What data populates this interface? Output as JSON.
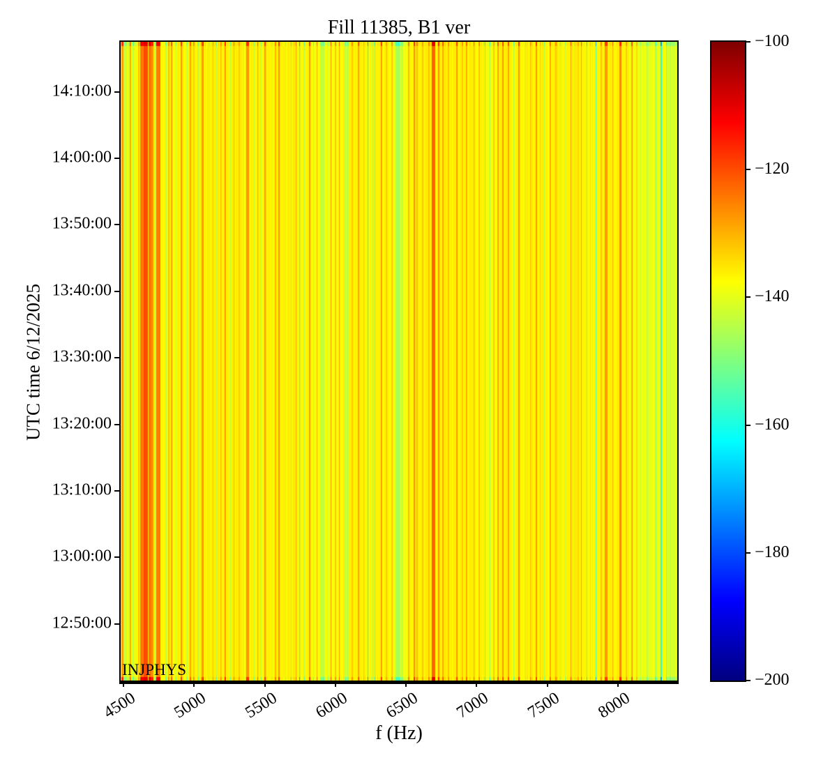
{
  "title": "Fill 11385, B1 ver",
  "xlabel": "f (Hz)",
  "ylabel": "UTC time 6/12/2025",
  "annotation": "INJPHYS",
  "colorbar": {
    "cmap": "jet",
    "vmin": -200,
    "vmax": -100,
    "tick_values": [
      -100,
      -120,
      -140,
      -160,
      -180,
      -200
    ],
    "tick_labels": [
      "−100",
      "−120",
      "−140",
      "−160",
      "−180",
      "−200"
    ]
  },
  "chart_data": {
    "type": "heatmap",
    "title": "Fill 11385, B1 ver",
    "xlabel": "f (Hz)",
    "ylabel": "UTC time 6/12/2025",
    "x_ticks": [
      4500,
      5000,
      5500,
      6000,
      6500,
      7000,
      7500,
      8000
    ],
    "y_ticks": [
      "14:10:00",
      "14:00:00",
      "13:50:00",
      "13:40:00",
      "13:30:00",
      "13:20:00",
      "13:10:00",
      "13:00:00",
      "12:50:00"
    ],
    "x_range_hz": [
      4480,
      8420
    ],
    "y_range_utc": [
      "12:41:30",
      "14:17:30"
    ],
    "value_range_db": [
      -200,
      -100
    ],
    "base_db": -136.5,
    "noise_db": 1.3,
    "edge_contrast": 2.1,
    "stripes": [
      [
        4560,
        160,
        -138.5
      ],
      [
        5950,
        200,
        -138
      ],
      [
        6460,
        120,
        -139
      ],
      [
        7100,
        100,
        -138
      ],
      [
        8200,
        250,
        -139
      ],
      [
        8380,
        80,
        -141
      ],
      [
        4490,
        15,
        -128
      ],
      [
        4515,
        20,
        -143
      ],
      [
        4535,
        15,
        -141
      ],
      [
        4548,
        8,
        -130
      ],
      [
        4570,
        10,
        -144
      ],
      [
        4610,
        10,
        -131
      ],
      [
        4632,
        28,
        -125
      ],
      [
        4660,
        30,
        -120
      ],
      [
        4688,
        22,
        -123
      ],
      [
        4706,
        14,
        -127
      ],
      [
        4727,
        8,
        -143
      ],
      [
        4748,
        28,
        -124
      ],
      [
        4800,
        8,
        -144
      ],
      [
        4822,
        10,
        -131
      ],
      [
        4840,
        12,
        -128
      ],
      [
        4870,
        6,
        -142
      ],
      [
        4910,
        10,
        -128
      ],
      [
        4948,
        8,
        -143
      ],
      [
        4973,
        8,
        -129
      ],
      [
        5000,
        10,
        -132
      ],
      [
        5032,
        8,
        -144
      ],
      [
        5062,
        14,
        -127
      ],
      [
        5106,
        7,
        -143
      ],
      [
        5135,
        7,
        -130
      ],
      [
        5160,
        7,
        -144
      ],
      [
        5190,
        8,
        -132
      ],
      [
        5219,
        9,
        -128
      ],
      [
        5254,
        8,
        -143
      ],
      [
        5283,
        8,
        -129
      ],
      [
        5320,
        8,
        -132
      ],
      [
        5352,
        8,
        -144
      ],
      [
        5378,
        18,
        -127
      ],
      [
        5426,
        8,
        -143
      ],
      [
        5451,
        8,
        -129
      ],
      [
        5475,
        8,
        -144
      ],
      [
        5500,
        10,
        -128
      ],
      [
        5549,
        7,
        -143
      ],
      [
        5575,
        8,
        -131
      ],
      [
        5599,
        10,
        -127
      ],
      [
        5648,
        6,
        -142
      ],
      [
        5687,
        8,
        -145
      ],
      [
        5722,
        8,
        -128
      ],
      [
        5746,
        8,
        -157
      ],
      [
        5781,
        8,
        -146
      ],
      [
        5820,
        9,
        -128
      ],
      [
        5845,
        7,
        -144
      ],
      [
        5869,
        6,
        -129
      ],
      [
        5905,
        30,
        -144
      ],
      [
        5945,
        10,
        -141
      ],
      [
        5968,
        8,
        -128
      ],
      [
        6000,
        8,
        -133
      ],
      [
        6027,
        8,
        -129
      ],
      [
        6070,
        15,
        -144
      ],
      [
        6090,
        12,
        -146
      ],
      [
        6120,
        10,
        -133
      ],
      [
        6165,
        9,
        -128
      ],
      [
        6200,
        8,
        -132
      ],
      [
        6230,
        9,
        -163
      ],
      [
        6258,
        10,
        -141
      ],
      [
        6278,
        10,
        -145
      ],
      [
        6327,
        9,
        -128
      ],
      [
        6360,
        10,
        -133
      ],
      [
        6400,
        12,
        -132
      ],
      [
        6440,
        25,
        -146
      ],
      [
        6470,
        20,
        -143
      ],
      [
        6520,
        10,
        -131
      ],
      [
        6560,
        12,
        -128
      ],
      [
        6580,
        10,
        -130
      ],
      [
        6620,
        10,
        -132
      ],
      [
        6660,
        10,
        -131
      ],
      [
        6695,
        26,
        -122
      ],
      [
        6730,
        10,
        -127
      ],
      [
        6762,
        10,
        -129
      ],
      [
        6800,
        10,
        -132
      ],
      [
        6860,
        12,
        -128
      ],
      [
        6900,
        8,
        -133
      ],
      [
        6930,
        10,
        -129
      ],
      [
        6980,
        8,
        -130
      ],
      [
        7020,
        10,
        -132
      ],
      [
        7060,
        8,
        -133
      ],
      [
        7091,
        10,
        -145
      ],
      [
        7120,
        8,
        -132
      ],
      [
        7150,
        8,
        -129
      ],
      [
        7185,
        8,
        -127
      ],
      [
        7224,
        8,
        -128
      ],
      [
        7264,
        8,
        -144
      ],
      [
        7298,
        10,
        -127
      ],
      [
        7347,
        8,
        -143
      ],
      [
        7380,
        8,
        -132
      ],
      [
        7421,
        10,
        -128
      ],
      [
        7450,
        8,
        -133
      ],
      [
        7480,
        8,
        -145
      ],
      [
        7520,
        8,
        -129
      ],
      [
        7560,
        8,
        -133
      ],
      [
        7593,
        8,
        -144
      ],
      [
        7628,
        7,
        -143
      ],
      [
        7667,
        8,
        -128
      ],
      [
        7692,
        6,
        -144
      ],
      [
        7720,
        8,
        -133
      ],
      [
        7741,
        8,
        -129
      ],
      [
        7781,
        8,
        -150
      ],
      [
        7810,
        8,
        -141
      ],
      [
        7845,
        7,
        -156
      ],
      [
        7880,
        10,
        -133
      ],
      [
        7916,
        18,
        -128
      ],
      [
        7963,
        8,
        -129
      ],
      [
        8016,
        16,
        -126
      ],
      [
        8060,
        8,
        -132
      ],
      [
        8100,
        10,
        -129
      ],
      [
        8135,
        8,
        -134
      ],
      [
        8160,
        8,
        -143
      ],
      [
        8209,
        10,
        -145
      ],
      [
        8240,
        10,
        -140
      ],
      [
        8266,
        12,
        -146
      ],
      [
        8308,
        10,
        -158
      ],
      [
        8343,
        8,
        -148
      ],
      [
        8372,
        8,
        -145
      ],
      [
        8400,
        12,
        -141
      ]
    ]
  }
}
